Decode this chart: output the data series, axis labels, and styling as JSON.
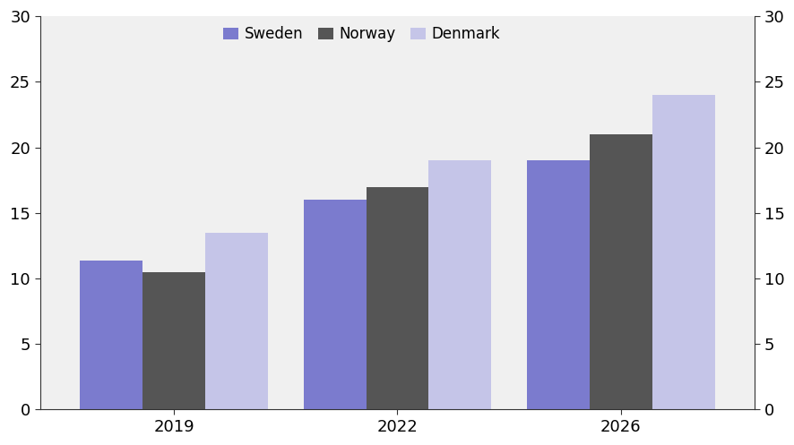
{
  "years": [
    2019,
    2022,
    2026
  ],
  "sweden": [
    11.4,
    16.0,
    19.0
  ],
  "norway": [
    10.5,
    17.0,
    21.0
  ],
  "denmark": [
    13.5,
    19.0,
    24.0
  ],
  "sweden_color": "#7b7bce",
  "norway_color": "#555555",
  "denmark_color": "#c5c5e8",
  "ylim": [
    0,
    30
  ],
  "yticks": [
    0,
    5,
    10,
    15,
    20,
    25,
    30
  ],
  "bar_width": 0.28,
  "legend_labels": [
    "Sweden",
    "Norway",
    "Denmark"
  ],
  "background_color": "#ffffff",
  "plot_bg_color": "#f0f0f0",
  "axis_color": "#333333",
  "tick_color": "#333333"
}
